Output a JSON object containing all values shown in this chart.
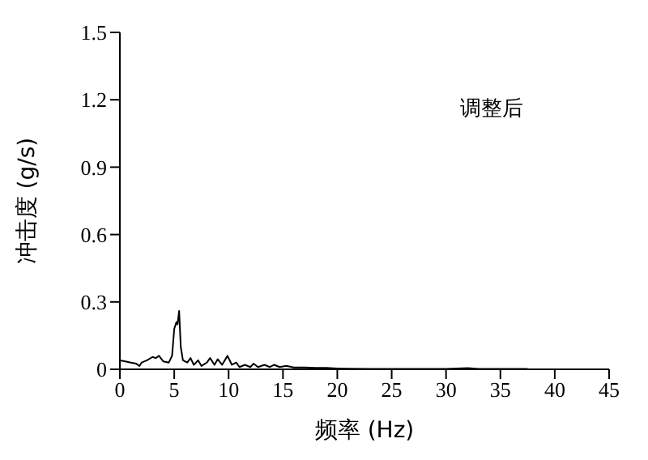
{
  "chart_data": {
    "type": "line",
    "xlabel": "频率 (Hz)",
    "ylabel": "冲击度 (g/s)",
    "annotations": [
      "调整后"
    ],
    "x": [
      0,
      0.5,
      1,
      1.5,
      1.8,
      2,
      2.5,
      3,
      3.3,
      3.6,
      4,
      4.5,
      4.8,
      5,
      5.2,
      5.3,
      5.45,
      5.6,
      5.8,
      6.2,
      6.5,
      6.8,
      7.2,
      7.5,
      8,
      8.3,
      8.7,
      9,
      9.4,
      9.9,
      10.3,
      10.7,
      11,
      11.5,
      12,
      12.3,
      12.7,
      13.3,
      13.8,
      14.2,
      14.7,
      15.3,
      16,
      17,
      18,
      19,
      20,
      21,
      23,
      25,
      28,
      30,
      32,
      33,
      35,
      37.5
    ],
    "series": [
      {
        "color": "#000000",
        "values": [
          0.04,
          0.035,
          0.03,
          0.025,
          0.015,
          0.03,
          0.04,
          0.055,
          0.05,
          0.06,
          0.035,
          0.03,
          0.06,
          0.18,
          0.21,
          0.2,
          0.26,
          0.1,
          0.04,
          0.03,
          0.05,
          0.02,
          0.04,
          0.015,
          0.03,
          0.05,
          0.02,
          0.045,
          0.02,
          0.06,
          0.02,
          0.03,
          0.01,
          0.02,
          0.01,
          0.025,
          0.01,
          0.02,
          0.01,
          0.02,
          0.01,
          0.015,
          0.008,
          0.008,
          0.006,
          0.006,
          0.004,
          0.003,
          0.002,
          0.002,
          0.002,
          0.002,
          0.005,
          0.002,
          0.002,
          0.002
        ]
      }
    ],
    "xlim": [
      0,
      45
    ],
    "xticks": [
      0,
      5,
      10,
      15,
      20,
      25,
      30,
      35,
      40,
      45
    ],
    "ylim": [
      0,
      1.5
    ],
    "yticks": [
      0,
      0.3,
      0.6,
      0.9,
      1.2,
      1.5
    ],
    "grid": false,
    "legend": false,
    "marker": "none",
    "line_style": "solid"
  }
}
